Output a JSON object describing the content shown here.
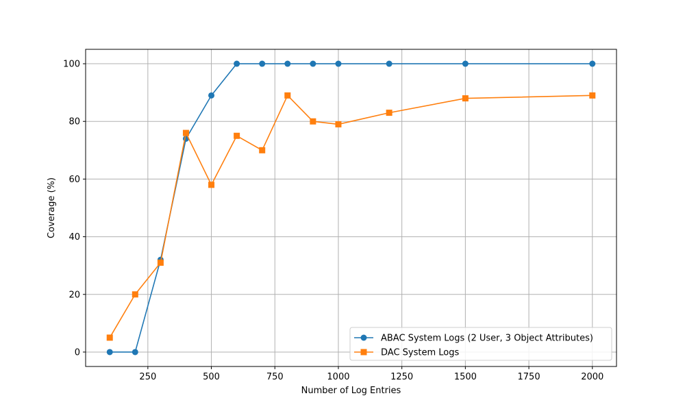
{
  "chart_data": {
    "type": "line",
    "title": "",
    "xlabel": "Number of Log Entries",
    "ylabel": "Coverage (%)",
    "xlim": [
      5,
      2095
    ],
    "ylim": [
      -5,
      105
    ],
    "xticks": [
      250,
      500,
      750,
      1000,
      1250,
      1500,
      1750,
      2000
    ],
    "yticks": [
      0,
      20,
      40,
      60,
      80,
      100
    ],
    "grid": true,
    "legend_position": "lower-right",
    "series": [
      {
        "name": "ABAC System Logs (2 User, 3 Object Attributes)",
        "color": "#1f77b4",
        "marker": "circle",
        "x": [
          100,
          200,
          300,
          400,
          500,
          600,
          700,
          800,
          900,
          1000,
          1200,
          1500,
          2000
        ],
        "y": [
          0,
          0,
          32,
          74,
          89,
          100,
          100,
          100,
          100,
          100,
          100,
          100,
          100
        ]
      },
      {
        "name": "DAC System Logs",
        "color": "#ff7f0e",
        "marker": "square",
        "x": [
          100,
          200,
          300,
          400,
          500,
          600,
          700,
          800,
          900,
          1000,
          1200,
          1500,
          2000
        ],
        "y": [
          5,
          20,
          31,
          76,
          58,
          75,
          70,
          89,
          80,
          79,
          83,
          88,
          89
        ]
      }
    ]
  }
}
